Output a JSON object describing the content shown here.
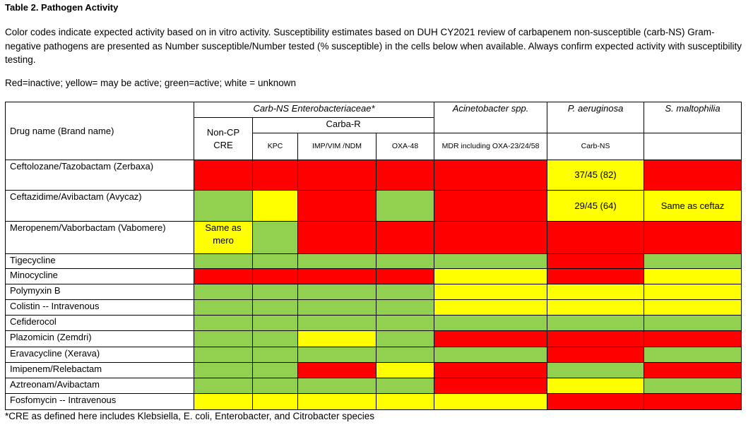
{
  "header": {
    "title": "Table 2. Pathogen Activity",
    "description": "Color codes indicate expected activity based on in vitro activity. Susceptibility estimates based on DUH CY2021 review of carbapenem non-susceptible (carb-NS) Gram-negative pathogens are presented as Number susceptible/Number tested (% susceptible) in the cells below when available. Always confirm expected activity with susceptibility testing.",
    "legend": "Red=inactive; yellow= may be active; green=active; white = unknown"
  },
  "table": {
    "headers": {
      "drug": "Drug name (Brand name)",
      "enterobacteriaceae": "Carb-NS Enterobacteriaceae*",
      "non_cp": "Non-CP CRE",
      "carba_r": "Carba-R",
      "kpc": "KPC",
      "imp": "IMP/VIM /NDM",
      "oxa48": "OXA-48",
      "acinetobacter": "Acinetobacter spp.",
      "acinetobacter_sub": "MDR including OXA-23/24/58",
      "paeruginosa": "P. aeruginosa",
      "paeruginosa_sub": "Carb-NS",
      "smaltophilia": "S. maltophilia"
    },
    "rows": [
      {
        "drug": "Ceftolozane/Tazobactam (Zerbaxa)",
        "cells": [
          {
            "color": "#ff0000"
          },
          {
            "color": "#ff0000"
          },
          {
            "color": "#ff0000"
          },
          {
            "color": "#ff0000"
          },
          {
            "color": "#ff0000"
          },
          {
            "color": "#ffff00",
            "text": "37/45 (82)"
          },
          {
            "color": "#ff0000"
          }
        ]
      },
      {
        "drug": "Ceftazidime/Avibactam (Avycaz)",
        "cells": [
          {
            "color": "#92d050"
          },
          {
            "color": "#ffff00"
          },
          {
            "color": "#ff0000"
          },
          {
            "color": "#92d050"
          },
          {
            "color": "#ff0000"
          },
          {
            "color": "#ffff00",
            "text": "29/45 (64)"
          },
          {
            "color": "#ffff00",
            "text": "Same as ceftaz"
          }
        ]
      },
      {
        "drug": "Meropenem/Vaborbactam (Vabomere)",
        "cells": [
          {
            "color": "#ffff00",
            "text": "Same as mero"
          },
          {
            "color": "#92d050"
          },
          {
            "color": "#ff0000"
          },
          {
            "color": "#ff0000"
          },
          {
            "color": "#ff0000"
          },
          {
            "color": "#ff0000"
          },
          {
            "color": "#ff0000"
          }
        ]
      },
      {
        "drug": "Tigecycline",
        "cells": [
          {
            "color": "#92d050"
          },
          {
            "color": "#92d050"
          },
          {
            "color": "#92d050"
          },
          {
            "color": "#92d050"
          },
          {
            "color": "#92d050"
          },
          {
            "color": "#ff0000"
          },
          {
            "color": "#92d050"
          }
        ]
      },
      {
        "drug": "Minocycline",
        "cells": [
          {
            "color": "#ff0000"
          },
          {
            "color": "#ff0000"
          },
          {
            "color": "#ff0000"
          },
          {
            "color": "#ff0000"
          },
          {
            "color": "#ffff00"
          },
          {
            "color": "#ff0000"
          },
          {
            "color": "#ffff00"
          }
        ]
      },
      {
        "drug": "Polymyxin B",
        "cells": [
          {
            "color": "#92d050"
          },
          {
            "color": "#92d050"
          },
          {
            "color": "#92d050"
          },
          {
            "color": "#92d050"
          },
          {
            "color": "#ffff00"
          },
          {
            "color": "#ffff00"
          },
          {
            "color": "#ffff00"
          }
        ]
      },
      {
        "drug": "Colistin -- Intravenous",
        "cells": [
          {
            "color": "#92d050"
          },
          {
            "color": "#92d050"
          },
          {
            "color": "#92d050"
          },
          {
            "color": "#92d050"
          },
          {
            "color": "#ffff00"
          },
          {
            "color": "#ffff00"
          },
          {
            "color": "#ffff00"
          }
        ]
      },
      {
        "drug": "Cefiderocol",
        "cells": [
          {
            "color": "#92d050"
          },
          {
            "color": "#92d050"
          },
          {
            "color": "#92d050"
          },
          {
            "color": "#92d050"
          },
          {
            "color": "#92d050"
          },
          {
            "color": "#92d050"
          },
          {
            "color": "#92d050"
          }
        ]
      },
      {
        "drug": "Plazomicin (Zemdri)",
        "cells": [
          {
            "color": "#92d050"
          },
          {
            "color": "#92d050"
          },
          {
            "color": "#ffff00"
          },
          {
            "color": "#92d050"
          },
          {
            "color": "#ff0000"
          },
          {
            "color": "#ff0000"
          },
          {
            "color": "#ff0000"
          }
        ]
      },
      {
        "drug": "Eravacycline (Xerava)",
        "cells": [
          {
            "color": "#92d050"
          },
          {
            "color": "#92d050"
          },
          {
            "color": "#92d050"
          },
          {
            "color": "#92d050"
          },
          {
            "color": "#92d050"
          },
          {
            "color": "#ff0000"
          },
          {
            "color": "#92d050"
          }
        ]
      },
      {
        "drug": "Imipenem/Relebactam",
        "cells": [
          {
            "color": "#92d050"
          },
          {
            "color": "#92d050"
          },
          {
            "color": "#ff0000"
          },
          {
            "color": "#ffff00"
          },
          {
            "color": "#ff0000"
          },
          {
            "color": "#92d050"
          },
          {
            "color": "#ff0000"
          }
        ]
      },
      {
        "drug": "Aztreonam/Avibactam",
        "cells": [
          {
            "color": "#92d050"
          },
          {
            "color": "#92d050"
          },
          {
            "color": "#92d050"
          },
          {
            "color": "#92d050"
          },
          {
            "color": "#ff0000"
          },
          {
            "color": "#ffff00"
          },
          {
            "color": "#92d050"
          }
        ]
      },
      {
        "drug": "Fosfomycin -- Intravenous",
        "cells": [
          {
            "color": "#ffff00"
          },
          {
            "color": "#ffff00"
          },
          {
            "color": "#ffff00"
          },
          {
            "color": "#ffff00"
          },
          {
            "color": "#ffff00"
          },
          {
            "color": "#ff0000"
          },
          {
            "color": "#ff0000"
          }
        ]
      }
    ]
  },
  "footnote": "*CRE as defined here includes Klebsiella, E. coli, Enterobacter, and Citrobacter species"
}
